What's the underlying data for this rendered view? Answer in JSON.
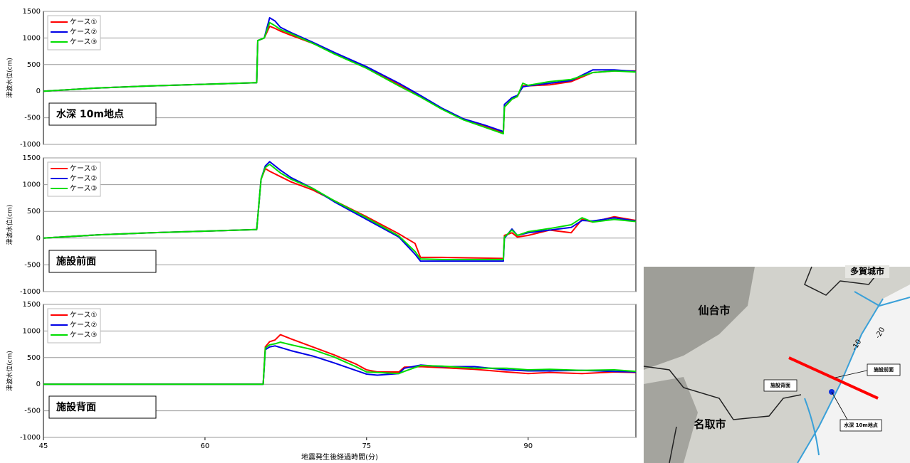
{
  "chart_data": [
    {
      "type": "line",
      "ylabel": "津波水位(cm)",
      "annotation": "水深 10m地点",
      "legend": "upper left",
      "grid": true,
      "xlim": [
        45,
        100
      ],
      "ylim": [
        -1000,
        1500
      ],
      "yticks": [
        -1000,
        -500,
        0,
        500,
        1000,
        1500
      ],
      "x": [
        45,
        50,
        55,
        60,
        64.8,
        64.9,
        65.5,
        66,
        66.5,
        67,
        68,
        70,
        72,
        75,
        78,
        80,
        82,
        84,
        86,
        87.7,
        87.8,
        88.5,
        89,
        89.5,
        90,
        92,
        94,
        96,
        98,
        100
      ],
      "series": [
        {
          "name": "ケース①",
          "color": "#ff0000",
          "values": [
            0,
            60,
            100,
            130,
            160,
            950,
            1000,
            1220,
            1180,
            1130,
            1050,
            900,
            720,
            450,
            120,
            -100,
            -330,
            -520,
            -660,
            -780,
            -300,
            -150,
            -100,
            100,
            100,
            120,
            180,
            350,
            380,
            380
          ]
        },
        {
          "name": "ケース②",
          "color": "#0000e6",
          "values": [
            0,
            60,
            100,
            130,
            160,
            950,
            1000,
            1380,
            1320,
            1200,
            1100,
            920,
            730,
            460,
            150,
            -80,
            -320,
            -520,
            -640,
            -760,
            -250,
            -120,
            -80,
            80,
            100,
            150,
            200,
            400,
            400,
            370
          ]
        },
        {
          "name": "ケース③",
          "color": "#00dd00",
          "values": [
            0,
            60,
            100,
            130,
            160,
            950,
            1000,
            1290,
            1230,
            1160,
            1080,
            900,
            700,
            430,
            100,
            -110,
            -340,
            -540,
            -680,
            -800,
            -300,
            -150,
            -100,
            150,
            110,
            180,
            220,
            350,
            380,
            360
          ]
        }
      ]
    },
    {
      "type": "line",
      "ylabel": "津波水位(cm)",
      "annotation": "施設前面",
      "legend": "upper left",
      "grid": true,
      "xlim": [
        45,
        100
      ],
      "ylim": [
        -1000,
        1500
      ],
      "yticks": [
        -1000,
        -500,
        0,
        500,
        1000,
        1500
      ],
      "x": [
        45,
        50,
        55,
        60,
        64.8,
        65.2,
        65.6,
        66,
        67,
        68,
        70,
        72,
        75,
        78,
        79.5,
        80,
        82,
        87.7,
        87.8,
        88.5,
        89,
        90,
        92,
        94,
        95,
        96,
        98,
        100
      ],
      "series": [
        {
          "name": "ケース①",
          "color": "#ff0000",
          "values": [
            0,
            60,
            100,
            130,
            160,
            1100,
            1300,
            1250,
            1150,
            1050,
            900,
            700,
            400,
            80,
            -100,
            -360,
            -360,
            -380,
            50,
            100,
            20,
            50,
            150,
            100,
            350,
            300,
            400,
            330
          ]
        },
        {
          "name": "ケース②",
          "color": "#0000e6",
          "values": [
            0,
            60,
            100,
            130,
            160,
            1100,
            1350,
            1430,
            1270,
            1130,
            930,
            680,
            350,
            20,
            -300,
            -430,
            -430,
            -430,
            0,
            170,
            50,
            100,
            150,
            200,
            330,
            320,
            380,
            320
          ]
        },
        {
          "name": "ケース③",
          "color": "#00dd00",
          "values": [
            0,
            60,
            100,
            130,
            160,
            1100,
            1320,
            1380,
            1220,
            1100,
            930,
            700,
            380,
            40,
            -250,
            -390,
            -400,
            -400,
            20,
            150,
            50,
            120,
            180,
            250,
            380,
            300,
            350,
            310
          ]
        }
      ]
    },
    {
      "type": "line",
      "ylabel": "津波水位(cm)",
      "annotation": "施設背面",
      "legend": "upper left",
      "grid": true,
      "xlabel": "地震発生後経過時間(分)",
      "xlim": [
        45,
        100
      ],
      "xticks": [
        45,
        60,
        75,
        90
      ],
      "ylim": [
        -1000,
        1500
      ],
      "yticks": [
        -1000,
        -500,
        0,
        500,
        1000,
        1500
      ],
      "x": [
        45,
        65.4,
        65.6,
        66,
        66.5,
        67,
        68,
        70,
        72,
        74,
        75,
        76,
        78,
        78.5,
        80,
        82,
        85,
        88,
        90,
        92,
        95,
        98,
        100
      ],
      "series": [
        {
          "name": "ケース①",
          "color": "#ff0000",
          "values": [
            0,
            0,
            700,
            800,
            830,
            930,
            850,
            700,
            550,
            380,
            270,
            230,
            230,
            320,
            330,
            310,
            280,
            230,
            200,
            220,
            200,
            230,
            220
          ]
        },
        {
          "name": "ケース②",
          "color": "#0000e6",
          "values": [
            0,
            0,
            650,
            700,
            720,
            690,
            630,
            530,
            400,
            260,
            190,
            170,
            200,
            300,
            360,
            330,
            330,
            270,
            250,
            250,
            260,
            240,
            230
          ]
        },
        {
          "name": "ケース③",
          "color": "#00dd00",
          "values": [
            0,
            0,
            680,
            740,
            760,
            790,
            740,
            650,
            510,
            330,
            230,
            220,
            200,
            240,
            350,
            340,
            300,
            300,
            270,
            280,
            260,
            270,
            240
          ]
        }
      ]
    }
  ],
  "map": {
    "labels": [
      "多賀城市",
      "仙台市",
      "名取市",
      "-10",
      "-20",
      "施設前面",
      "施設背面",
      "水深 10m地点"
    ]
  }
}
